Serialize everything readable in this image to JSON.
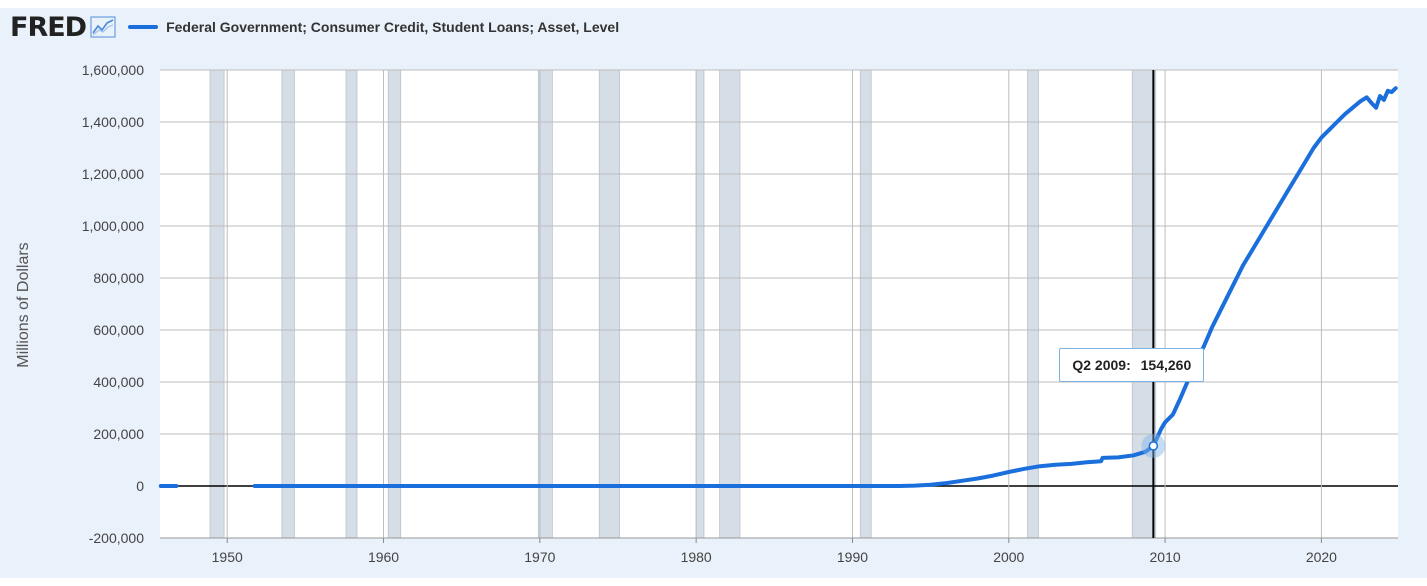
{
  "header": {
    "logo": "FRED",
    "series_name": "Federal Government; Consumer Credit, Student Loans; Asset, Level"
  },
  "colors": {
    "series": "#1a6fdc",
    "recession": "#d5dde6",
    "background": "#e9f1fa"
  },
  "tooltip": {
    "period": "Q2 2009:",
    "value": "154,260"
  },
  "chart_data": {
    "type": "line",
    "title": "",
    "ylabel": "Millions of Dollars",
    "xlabel": "",
    "xlim": [
      1945.7,
      2024.9
    ],
    "ylim": [
      -200000,
      1600000
    ],
    "grid": true,
    "legend_position": "top-left",
    "yticks": [
      {
        "v": -200000,
        "label": "-200,000"
      },
      {
        "v": 0,
        "label": "0"
      },
      {
        "v": 200000,
        "label": "200,000"
      },
      {
        "v": 400000,
        "label": "400,000"
      },
      {
        "v": 600000,
        "label": "600,000"
      },
      {
        "v": 800000,
        "label": "800,000"
      },
      {
        "v": 1000000,
        "label": "1,000,000"
      },
      {
        "v": 1200000,
        "label": "1,200,000"
      },
      {
        "v": 1400000,
        "label": "1,400,000"
      },
      {
        "v": 1600000,
        "label": "1,600,000"
      }
    ],
    "xticks": [
      {
        "v": 1950,
        "label": "1950"
      },
      {
        "v": 1960,
        "label": "1960"
      },
      {
        "v": 1970,
        "label": "1970"
      },
      {
        "v": 1980,
        "label": "1980"
      },
      {
        "v": 1990,
        "label": "1990"
      },
      {
        "v": 2000,
        "label": "2000"
      },
      {
        "v": 2010,
        "label": "2010"
      },
      {
        "v": 2020,
        "label": "2020"
      }
    ],
    "recessions": [
      [
        1948.9,
        1949.8
      ],
      [
        1953.5,
        1954.3
      ],
      [
        1957.6,
        1958.3
      ],
      [
        1960.3,
        1961.1
      ],
      [
        1969.9,
        1970.8
      ],
      [
        1973.8,
        1975.1
      ],
      [
        1980.0,
        1980.5
      ],
      [
        1981.5,
        1982.8
      ],
      [
        1990.5,
        1991.2
      ],
      [
        2001.2,
        2001.9
      ],
      [
        2007.9,
        2009.4
      ]
    ],
    "series": [
      {
        "name": "Federal Government; Consumer Credit, Student Loans; Asset, Level",
        "segments": [
          [
            [
              1945.75,
              0
            ],
            [
              1946.75,
              0
            ]
          ],
          [
            [
              1951.75,
              0
            ],
            [
              1993,
              0
            ],
            [
              1994,
              1500
            ],
            [
              1995,
              5000
            ],
            [
              1996,
              11000
            ],
            [
              1997,
              20000
            ],
            [
              1998,
              29000
            ],
            [
              1999,
              40000
            ],
            [
              2000,
              54000
            ],
            [
              2001,
              66000
            ],
            [
              2002,
              76000
            ],
            [
              2003,
              82000
            ],
            [
              2004,
              85000
            ],
            [
              2005,
              91000
            ],
            [
              2005.9,
              95000
            ],
            [
              2006,
              108000
            ],
            [
              2007,
              110000
            ],
            [
              2008,
              118000
            ],
            [
              2008.75,
              132000
            ],
            [
              2009.25,
              154260
            ],
            [
              2009.75,
              220000
            ],
            [
              2010,
              245000
            ],
            [
              2010.5,
              275000
            ],
            [
              2011,
              340000
            ],
            [
              2011.5,
              410000
            ],
            [
              2012,
              480000
            ],
            [
              2012.5,
              540000
            ],
            [
              2013,
              610000
            ],
            [
              2013.5,
              670000
            ],
            [
              2014,
              730000
            ],
            [
              2014.5,
              790000
            ],
            [
              2015,
              850000
            ],
            [
              2015.5,
              900000
            ],
            [
              2016,
              950000
            ],
            [
              2016.5,
              1000000
            ],
            [
              2017,
              1050000
            ],
            [
              2017.5,
              1100000
            ],
            [
              2018,
              1150000
            ],
            [
              2018.5,
              1200000
            ],
            [
              2019,
              1250000
            ],
            [
              2019.5,
              1300000
            ],
            [
              2020,
              1340000
            ],
            [
              2020.5,
              1370000
            ],
            [
              2021,
              1400000
            ],
            [
              2021.5,
              1430000
            ],
            [
              2022,
              1455000
            ],
            [
              2022.5,
              1480000
            ],
            [
              2022.9,
              1495000
            ],
            [
              2023.25,
              1470000
            ],
            [
              2023.5,
              1455000
            ],
            [
              2023.75,
              1500000
            ],
            [
              2024,
              1485000
            ],
            [
              2024.25,
              1520000
            ],
            [
              2024.5,
              1515000
            ],
            [
              2024.75,
              1530000
            ]
          ]
        ]
      }
    ],
    "highlight": {
      "x": 2009.25,
      "y": 154260
    }
  }
}
